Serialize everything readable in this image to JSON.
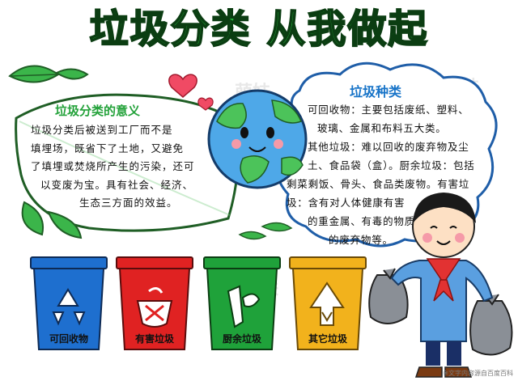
{
  "title": "垃圾分类 从我做起",
  "meaning": {
    "heading": "垃圾分类的意义",
    "lines": [
      "垃圾分类后被送到工厂而不是",
      "填埋场，既省下了土地，又避免",
      "了填埋或焚烧所产生的污染，还可",
      "以变废为宝。具有社会、经济、",
      "生态三方面的效益。"
    ]
  },
  "types": {
    "heading": "垃圾种类",
    "lines": [
      "可回收物：主要包括废纸、塑料、",
      "玻璃、金属和布料五大类。",
      "其他垃圾：难以回收的废弃物及尘",
      "土、食品袋（盒）。厨余垃圾：包括",
      "剩菜剩饭、骨头、食品类废物。有害垃",
      "圾：含有对人体健康有害",
      "的重金属、有毒的物质",
      "的废弃物等。"
    ]
  },
  "bins": [
    {
      "label": "可回收物",
      "color": "#1e6fcf",
      "icon": "recycle-icon"
    },
    {
      "label": "有害垃圾",
      "color": "#e02222",
      "icon": "hazard-icon"
    },
    {
      "label": "厨余垃圾",
      "color": "#1fa23a",
      "icon": "food-waste-icon"
    },
    {
      "label": "其它垃圾",
      "color": "#f2b21c",
      "icon": "other-waste-icon"
    }
  ],
  "watermark": "萌妹",
  "credit": "※文字内容源自百度百科"
}
